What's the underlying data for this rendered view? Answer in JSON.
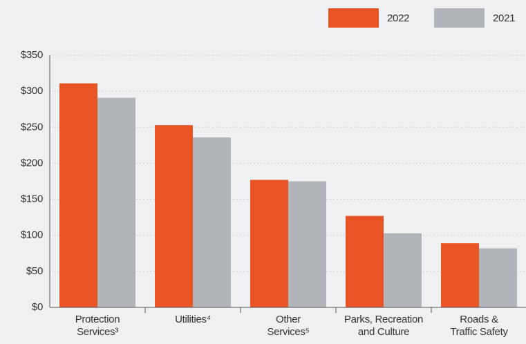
{
  "chart_data": {
    "type": "bar",
    "categories": [
      "Protection\nServices³",
      "Utilities⁴",
      "Other\nServices⁵",
      "Parks, Recreation\nand Culture",
      "Roads &\nTraffic Safety"
    ],
    "series": [
      {
        "name": "2022",
        "color": "#e85424",
        "values": [
          311,
          253,
          177,
          127,
          89
        ]
      },
      {
        "name": "2021",
        "color": "#b1b5b9",
        "values": [
          291,
          236,
          175,
          103,
          82
        ]
      }
    ],
    "ylim": [
      0,
      350
    ],
    "yticks": [
      {
        "value": 0,
        "label": "$0"
      },
      {
        "value": 50,
        "label": "$50"
      },
      {
        "value": 100,
        "label": "$100"
      },
      {
        "value": 150,
        "label": "$150"
      },
      {
        "value": 200,
        "label": "$200"
      },
      {
        "value": 250,
        "label": "$250"
      },
      {
        "value": 300,
        "label": "$300"
      },
      {
        "value": 350,
        "label": "$350"
      }
    ],
    "grid": true,
    "legend": "top-right"
  }
}
